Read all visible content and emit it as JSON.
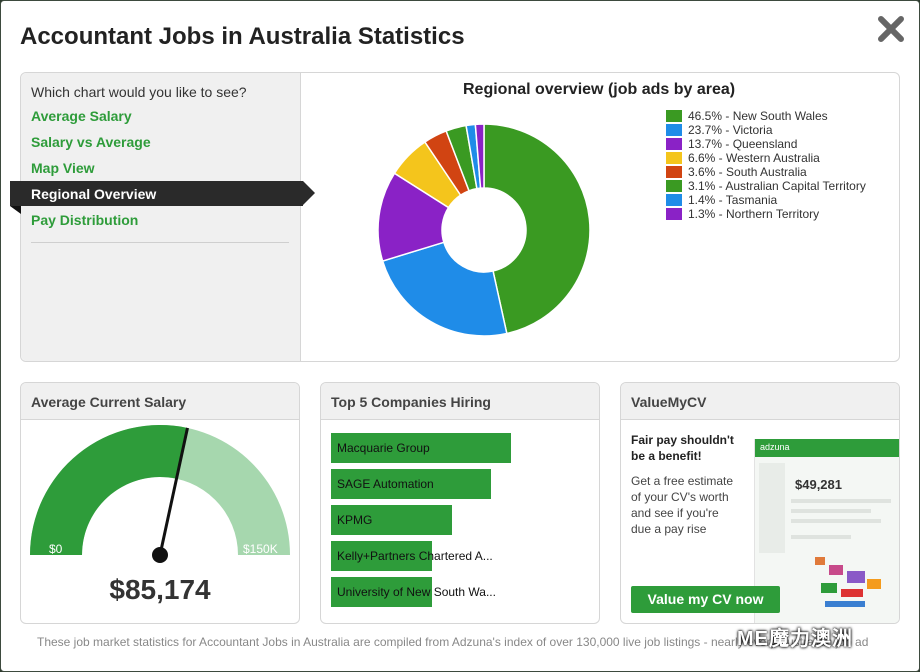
{
  "title": "Accountant Jobs in Australia Statistics",
  "chooser": {
    "question": "Which chart would you like to see?",
    "options": [
      "Average Salary",
      "Salary vs Average",
      "Map View",
      "Regional Overview",
      "Pay Distribution"
    ],
    "active": "Regional Overview"
  },
  "chart_data": {
    "type": "pie",
    "title": "Regional overview (job ads by area)",
    "style": "donut",
    "categories": [
      "New South Wales",
      "Victoria",
      "Queensland",
      "Western Australia",
      "South Australia",
      "Australian Capital Territory",
      "Tasmania",
      "Northern Territory"
    ],
    "values": [
      46.5,
      23.7,
      13.7,
      6.6,
      3.6,
      3.1,
      1.4,
      1.3
    ],
    "legend": [
      "46.5% - New South Wales",
      "23.7% - Victoria",
      "13.7% - Queensland",
      "6.6% - Western Australia",
      "3.6% - South Australia",
      "3.1% - Australian Capital Territory",
      "1.4% - Tasmania",
      "1.3% - Northern Territory"
    ],
    "colors": [
      "#3a9a22",
      "#1f8ce8",
      "#8a22c6",
      "#f4c51c",
      "#d14412",
      "#3a9a22",
      "#1f8ce8",
      "#8a22c6"
    ],
    "legend_position": "right"
  },
  "salary_card": {
    "title": "Average Current Salary",
    "min_label": "$0",
    "max_label": "$150K",
    "value": "$85,174",
    "gauge_min": 0,
    "gauge_max": 150000,
    "gauge_value": 85174,
    "fill_color": "#2e9c3a",
    "track_color": "#a6d7ae"
  },
  "companies_card": {
    "title": "Top 5 Companies Hiring",
    "companies": [
      {
        "name": "Macquarie Group",
        "share": 1.0
      },
      {
        "name": "SAGE Automation",
        "share": 0.89
      },
      {
        "name": "KPMG",
        "share": 0.67
      },
      {
        "name": "Kelly+Partners Chartered A...",
        "share": 0.56
      },
      {
        "name": "University of New South Wa...",
        "share": 0.56
      }
    ]
  },
  "vmc_card": {
    "title": "ValueMyCV",
    "headline": "Fair pay shouldn't be a benefit!",
    "body": "Get a free estimate of your CV's worth and see if you're due a pay rise",
    "button": "Value my CV now",
    "preview_logo": "adzuna",
    "preview_amount": "$49,281"
  },
  "footer": "These job market statistics for Accountant Jobs in Australia are compiled from Adzuna's index of over 130,000 live job listings - nearly every Australian job ad",
  "watermark": "ME魔力澳洲",
  "icons": {
    "close": "close-icon"
  }
}
